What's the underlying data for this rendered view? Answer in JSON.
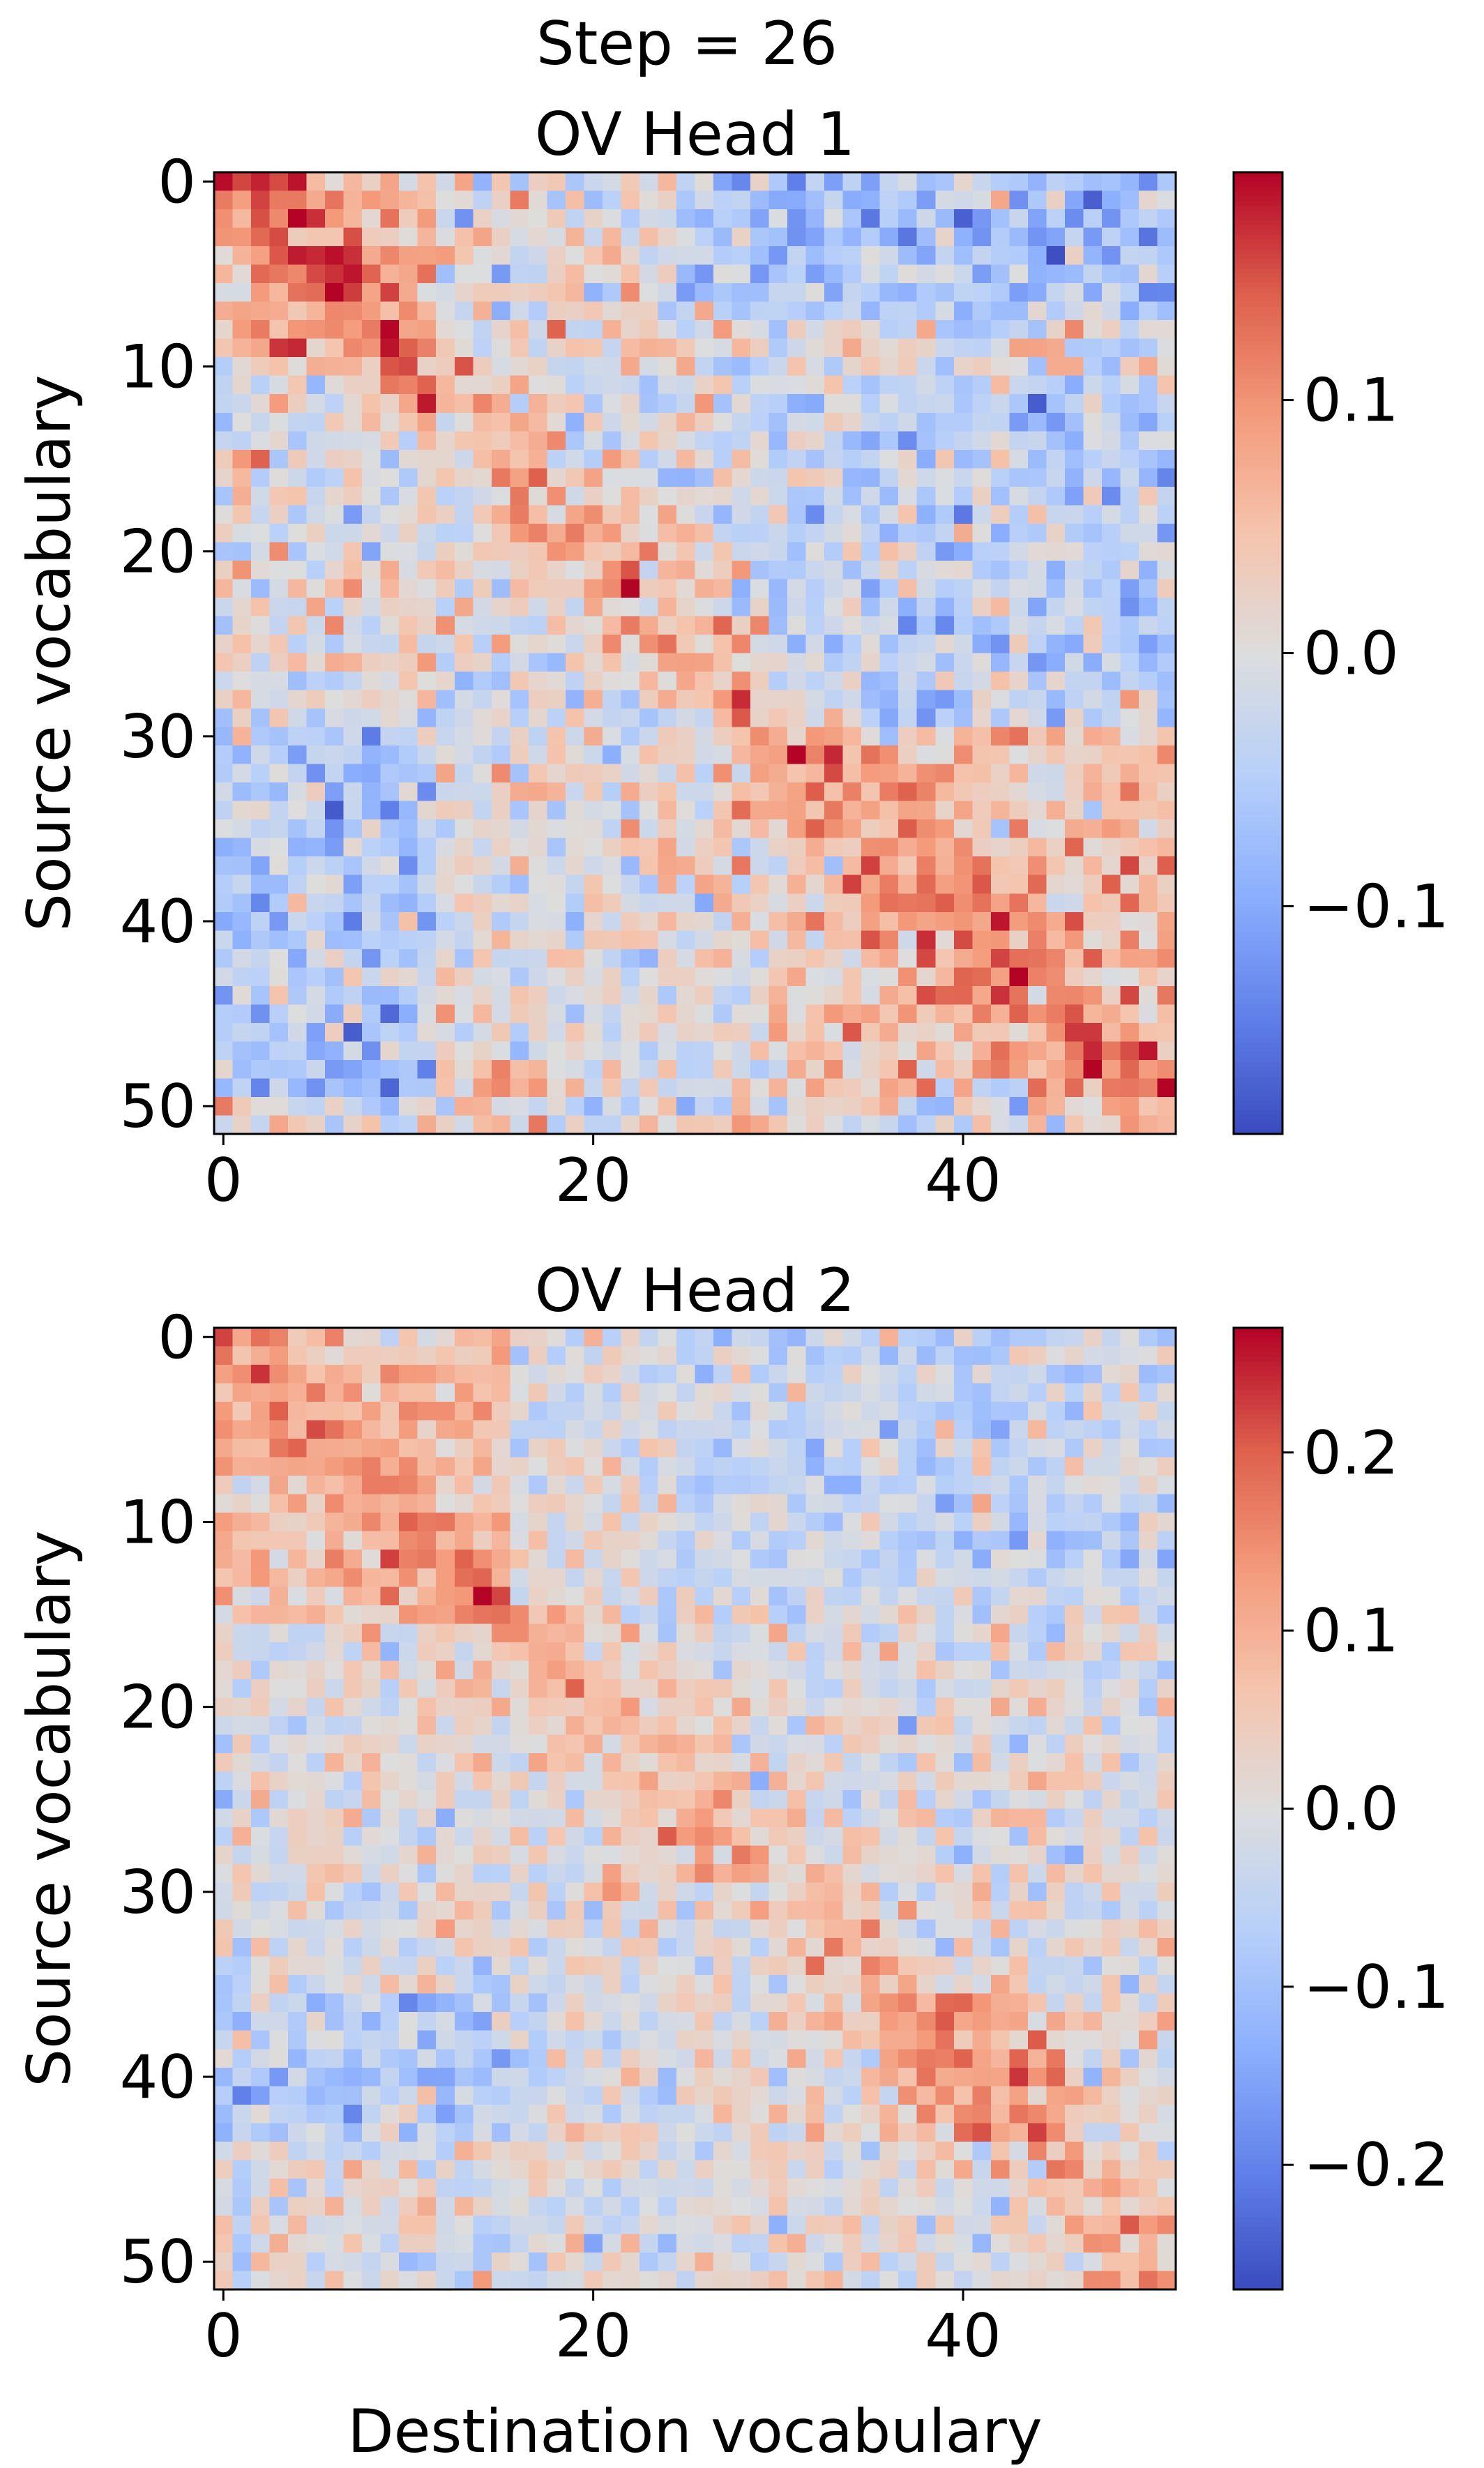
{
  "figure": {
    "suptitle": "Step = 26"
  },
  "chart_data": [
    {
      "type": "heatmap",
      "title": "OV Head 1",
      "xlabel": "",
      "ylabel": "Source vocabulary",
      "rows": 52,
      "cols": 52,
      "x_ticks": [
        0,
        20,
        40
      ],
      "y_ticks": [
        0,
        10,
        20,
        30,
        40,
        50
      ],
      "colormap": "coolwarm",
      "vmin": -0.19,
      "vmax": 0.19,
      "colorbar_ticks": [
        -0.1,
        0.0,
        0.1
      ],
      "colorbar_tick_labels": [
        "−0.1",
        "0.0",
        "0.1"
      ],
      "pattern": {
        "description_values": "diagonal band of positive weights from source 0 toward source 50, plus noise",
        "seed": 7,
        "peaks": [
          [
            11,
            11,
            0.14
          ],
          [
            22,
            22,
            0.19
          ],
          [
            28,
            28,
            0.17
          ],
          [
            8,
            8,
            0.12
          ],
          [
            44,
            45,
            0.11
          ]
        ],
        "diag_strength": 0.07,
        "noise": 0.045,
        "neg_regions": [
          [
            0,
            8,
            25,
            52,
            -0.06
          ],
          [
            30,
            50,
            0,
            12,
            -0.05
          ],
          [
            12,
            30,
            30,
            52,
            -0.04
          ]
        ],
        "pos_regions": [
          [
            0,
            10,
            0,
            12,
            0.05
          ],
          [
            30,
            50,
            30,
            52,
            0.045
          ]
        ]
      }
    },
    {
      "type": "heatmap",
      "title": "OV Head 2",
      "xlabel": "Destination vocabulary",
      "ylabel": "Source vocabulary",
      "rows": 52,
      "cols": 52,
      "x_ticks": [
        0,
        20,
        40
      ],
      "y_ticks": [
        0,
        10,
        20,
        30,
        40,
        50
      ],
      "colormap": "coolwarm",
      "vmin": -0.27,
      "vmax": 0.27,
      "colorbar_ticks": [
        -0.2,
        -0.1,
        0.0,
        0.1,
        0.2
      ],
      "colorbar_tick_labels": [
        "−0.2",
        "−0.1",
        "0.0",
        "0.1",
        "0.2"
      ],
      "pattern": {
        "description_values": "diagonal band of positive weights, strongest near source 8-14",
        "seed": 19,
        "peaks": [
          [
            14,
            14,
            0.27
          ],
          [
            10,
            10,
            0.2
          ],
          [
            8,
            8,
            0.17
          ],
          [
            40,
            41,
            0.12
          ],
          [
            22,
            25,
            0.1
          ],
          [
            25,
            26,
            0.1
          ]
        ],
        "diag_strength": 0.08,
        "noise": 0.05,
        "neg_regions": [
          [
            36,
            44,
            0,
            18,
            -0.06
          ],
          [
            0,
            15,
            25,
            52,
            -0.04
          ]
        ],
        "pos_regions": [
          [
            0,
            16,
            0,
            16,
            0.06
          ],
          [
            36,
            44,
            36,
            46,
            0.07
          ]
        ]
      }
    }
  ]
}
